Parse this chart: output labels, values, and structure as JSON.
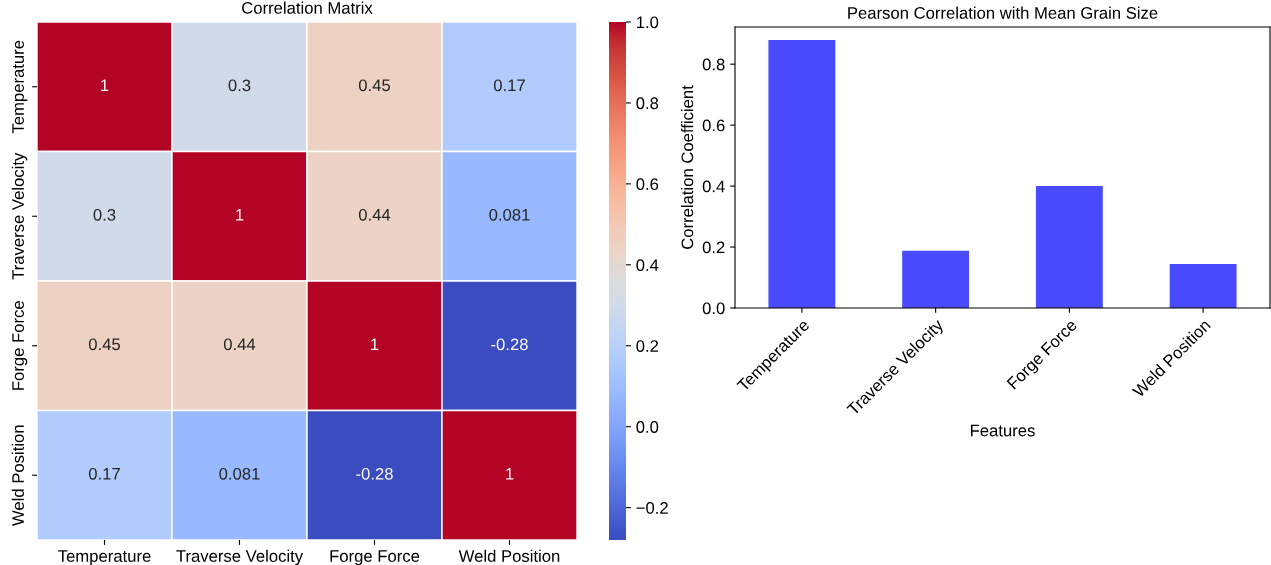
{
  "chart_data": [
    {
      "type": "heatmap",
      "title": "Correlation Matrix",
      "categories": [
        "Temperature",
        "Traverse Velocity",
        "Forge Force",
        "Weld Position"
      ],
      "y_categories": [
        "Temperature",
        "Traverse Velocity",
        "Forge Force",
        "Weld Position"
      ],
      "cells": [
        [
          1,
          0.3,
          0.45,
          0.17
        ],
        [
          0.3,
          1,
          0.44,
          0.081
        ],
        [
          0.45,
          0.44,
          1,
          -0.28
        ],
        [
          0.17,
          0.081,
          -0.28,
          1
        ]
      ],
      "data_labels": true,
      "clim": [
        -0.28,
        1
      ],
      "cticks": [
        {
          "value": -0.2,
          "label": "−0.2"
        },
        {
          "value": 0.0,
          "label": "0.0"
        },
        0.2,
        0.4,
        0.6,
        0.8,
        {
          "value": 1.0,
          "label": "1.0"
        }
      ]
    },
    {
      "type": "bar",
      "title": "Pearson Correlation with Mean Grain Size",
      "xlabel": "Features",
      "ylabel": "Correlation Coefficient",
      "categories": [
        "Temperature",
        "Traverse Velocity",
        "Forge Force",
        "Weld Position"
      ],
      "values": [
        0.879,
        0.188,
        0.4,
        0.144
      ],
      "color": "#4a4aff",
      "ylim": [
        0,
        0.922
      ],
      "yticks": [
        {
          "value": 0.0,
          "label": "0.0"
        },
        0.2,
        0.4,
        0.6,
        0.8
      ],
      "grid": false
    }
  ]
}
